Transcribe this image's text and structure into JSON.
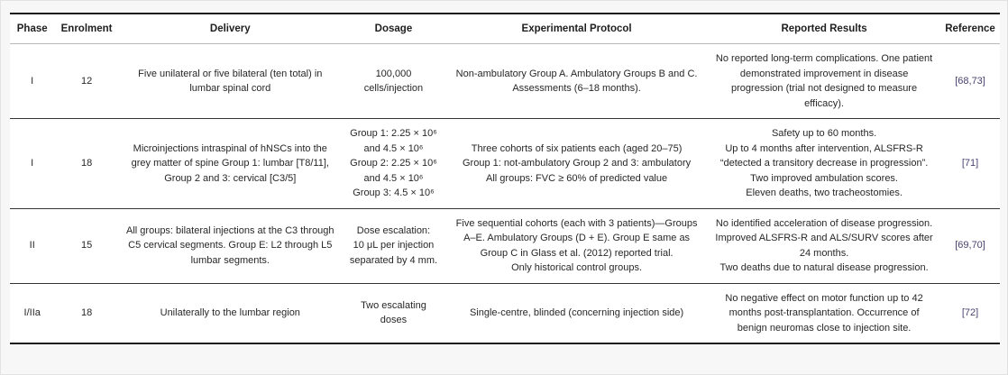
{
  "page": {
    "background_color": "#f7f7f7",
    "reference_link_color": "#4a4270"
  },
  "table": {
    "columns": [
      {
        "id": "phase",
        "label": "Phase"
      },
      {
        "id": "enrolment",
        "label": "Enrolment"
      },
      {
        "id": "delivery",
        "label": "Delivery"
      },
      {
        "id": "dosage",
        "label": "Dosage"
      },
      {
        "id": "protocol",
        "label": "Experimental Protocol"
      },
      {
        "id": "results",
        "label": "Reported Results"
      },
      {
        "id": "reference",
        "label": "Reference"
      }
    ],
    "rows": [
      {
        "phase": "I",
        "enrolment": "12",
        "delivery": "Five unilateral or five bilateral (ten total) in lumbar spinal cord",
        "dosage": "100,000\ncells/injection",
        "protocol": "Non-ambulatory Group A. Ambulatory Groups B and C.\nAssessments (6–18 months).",
        "results": "No reported long-term complications. One patient demonstrated improvement in disease progression (trial not designed to measure efficacy).",
        "reference": "[68,73]"
      },
      {
        "phase": "I",
        "enrolment": "18",
        "delivery": "Microinjections intraspinal of hNSCs into the grey matter of spine Group 1: lumbar [T8/11], Group 2 and 3: cervical [C3/5]",
        "dosage": "Group 1: 2.25 × 10⁶\nand 4.5 × 10⁶\nGroup 2: 2.25 × 10⁶\nand 4.5 × 10⁶\nGroup 3: 4.5 × 10⁶",
        "protocol": "Three cohorts of six patients each (aged 20–75)\nGroup 1: not-ambulatory Group 2 and 3: ambulatory\nAll groups: FVC ≥ 60% of predicted value",
        "results": "Safety up to 60 months.\nUp to 4 months after intervention, ALSFRS-R “detected a transitory decrease in progression”.\nTwo improved ambulation scores.\nEleven deaths, two tracheostomies.",
        "reference": "[71]"
      },
      {
        "phase": "II",
        "enrolment": "15",
        "delivery": "All groups: bilateral injections at the C3 through C5 cervical segments. Group E: L2 through L5 lumbar segments.",
        "dosage": "Dose escalation:\n10 μL per injection separated by 4 mm.",
        "protocol": "Five sequential cohorts (each with 3 patients)—Groups A–E. Ambulatory Groups (D + E). Group E same as Group C in Glass et al. (2012) reported trial.\nOnly historical control groups.",
        "results": "No identified acceleration of disease progression.\nImproved ALSFRS-R and ALS/SURV scores after 24 months.\nTwo deaths due to natural disease progression.",
        "reference": "[69,70]"
      },
      {
        "phase": "I/IIa",
        "enrolment": "18",
        "delivery": "Unilaterally to the lumbar region",
        "dosage": "Two escalating doses",
        "protocol": "Single-centre, blinded (concerning injection side)",
        "results": "No negative effect on motor function up to 42 months post-transplantation. Occurrence of benign neuromas close to injection site.",
        "reference": "[72]"
      }
    ]
  }
}
